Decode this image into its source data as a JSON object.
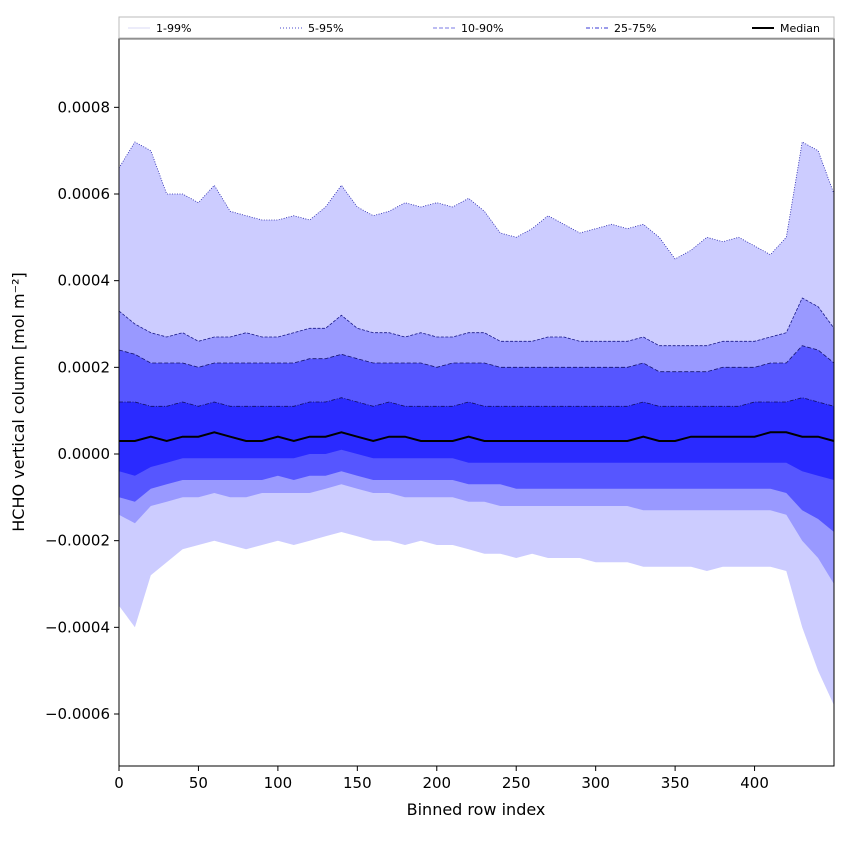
{
  "chart_data": {
    "type": "area",
    "title": "",
    "xlabel": "Binned row index",
    "ylabel": "HCHO vertical column [mol m⁻²]",
    "xlim": [
      0,
      450
    ],
    "ylim": [
      -0.00072,
      0.00096
    ],
    "x_ticks": [
      0,
      50,
      100,
      150,
      200,
      250,
      300,
      350,
      400
    ],
    "y_ticks": [
      -0.0006,
      -0.0004,
      -0.0002,
      0.0,
      0.0002,
      0.0004,
      0.0006,
      0.0008
    ],
    "y_tick_labels": [
      "−0.0006",
      "−0.0004",
      "−0.0002",
      "0.0000",
      "0.0002",
      "0.0004",
      "0.0006",
      "0.0008"
    ],
    "legend": {
      "placement": "top",
      "entries": [
        {
          "label": "1-99%",
          "color": "#d8d8f4",
          "style": "solid"
        },
        {
          "label": "5-95%",
          "color": "#4a4acd",
          "style": "dotted"
        },
        {
          "label": "10-90%",
          "color": "#7a7ae6",
          "style": "dashed"
        },
        {
          "label": "25-75%",
          "color": "#3a3ad6",
          "style": "dashdot"
        },
        {
          "label": "Median",
          "color": "#000000",
          "style": "solid"
        }
      ]
    },
    "x": [
      0,
      10,
      20,
      30,
      40,
      50,
      60,
      70,
      80,
      90,
      100,
      110,
      120,
      130,
      140,
      150,
      160,
      170,
      180,
      190,
      200,
      210,
      220,
      230,
      240,
      250,
      260,
      270,
      280,
      290,
      300,
      310,
      320,
      330,
      340,
      350,
      360,
      370,
      380,
      390,
      400,
      410,
      420,
      430,
      440,
      450
    ],
    "series": [
      {
        "name": "1-99%",
        "upper": [
          0.00066,
          0.00072,
          0.0007,
          0.0006,
          0.0006,
          0.00058,
          0.00062,
          0.00056,
          0.00055,
          0.00054,
          0.00054,
          0.00055,
          0.00054,
          0.00057,
          0.00062,
          0.00057,
          0.00055,
          0.00056,
          0.00058,
          0.00057,
          0.00058,
          0.00057,
          0.00059,
          0.00056,
          0.00051,
          0.0005,
          0.00052,
          0.00055,
          0.00053,
          0.00051,
          0.00052,
          0.00053,
          0.00052,
          0.00053,
          0.0005,
          0.00045,
          0.00047,
          0.0005,
          0.00049,
          0.0005,
          0.00048,
          0.00046,
          0.0005,
          0.00072,
          0.0007,
          0.0006
        ],
        "lower": [
          -0.00035,
          -0.0004,
          -0.00028,
          -0.00025,
          -0.00022,
          -0.00021,
          -0.0002,
          -0.00021,
          -0.00022,
          -0.00021,
          -0.0002,
          -0.00021,
          -0.0002,
          -0.00019,
          -0.00018,
          -0.00019,
          -0.0002,
          -0.0002,
          -0.00021,
          -0.0002,
          -0.00021,
          -0.00021,
          -0.00022,
          -0.00023,
          -0.00023,
          -0.00024,
          -0.00023,
          -0.00024,
          -0.00024,
          -0.00024,
          -0.00025,
          -0.00025,
          -0.00025,
          -0.00026,
          -0.00026,
          -0.00026,
          -0.00026,
          -0.00027,
          -0.00026,
          -0.00026,
          -0.00026,
          -0.00026,
          -0.00027,
          -0.0004,
          -0.0005,
          -0.00058
        ]
      },
      {
        "name": "5-95%",
        "upper": [
          0.00033,
          0.0003,
          0.00028,
          0.00027,
          0.00028,
          0.00026,
          0.00027,
          0.00027,
          0.00028,
          0.00027,
          0.00027,
          0.00028,
          0.00029,
          0.00029,
          0.00032,
          0.00029,
          0.00028,
          0.00028,
          0.00027,
          0.00028,
          0.00027,
          0.00027,
          0.00028,
          0.00028,
          0.00026,
          0.00026,
          0.00026,
          0.00027,
          0.00027,
          0.00026,
          0.00026,
          0.00026,
          0.00026,
          0.00027,
          0.00025,
          0.00025,
          0.00025,
          0.00025,
          0.00026,
          0.00026,
          0.00026,
          0.00027,
          0.00028,
          0.00036,
          0.00034,
          0.00029
        ],
        "lower": [
          -0.00014,
          -0.00016,
          -0.00012,
          -0.00011,
          -0.0001,
          -0.0001,
          -9e-05,
          -0.0001,
          -0.0001,
          -9e-05,
          -9e-05,
          -9e-05,
          -9e-05,
          -8e-05,
          -7e-05,
          -8e-05,
          -9e-05,
          -9e-05,
          -0.0001,
          -0.0001,
          -0.0001,
          -0.0001,
          -0.00011,
          -0.00011,
          -0.00012,
          -0.00012,
          -0.00012,
          -0.00012,
          -0.00012,
          -0.00012,
          -0.00012,
          -0.00012,
          -0.00012,
          -0.00013,
          -0.00013,
          -0.00013,
          -0.00013,
          -0.00013,
          -0.00013,
          -0.00013,
          -0.00013,
          -0.00013,
          -0.00014,
          -0.0002,
          -0.00024,
          -0.0003
        ]
      },
      {
        "name": "10-90%",
        "upper": [
          0.00024,
          0.00023,
          0.00021,
          0.00021,
          0.00021,
          0.0002,
          0.00021,
          0.00021,
          0.00021,
          0.00021,
          0.00021,
          0.00021,
          0.00022,
          0.00022,
          0.00023,
          0.00022,
          0.00021,
          0.00021,
          0.00021,
          0.00021,
          0.0002,
          0.00021,
          0.00021,
          0.00021,
          0.0002,
          0.0002,
          0.0002,
          0.0002,
          0.0002,
          0.0002,
          0.0002,
          0.0002,
          0.0002,
          0.00021,
          0.00019,
          0.00019,
          0.00019,
          0.00019,
          0.0002,
          0.0002,
          0.0002,
          0.00021,
          0.00021,
          0.00025,
          0.00024,
          0.00021
        ],
        "lower": [
          -0.0001,
          -0.00011,
          -8e-05,
          -7e-05,
          -6e-05,
          -6e-05,
          -6e-05,
          -6e-05,
          -6e-05,
          -6e-05,
          -5e-05,
          -6e-05,
          -5e-05,
          -5e-05,
          -4e-05,
          -5e-05,
          -6e-05,
          -6e-05,
          -6e-05,
          -6e-05,
          -6e-05,
          -6e-05,
          -7e-05,
          -7e-05,
          -7e-05,
          -8e-05,
          -8e-05,
          -8e-05,
          -8e-05,
          -8e-05,
          -8e-05,
          -8e-05,
          -8e-05,
          -8e-05,
          -8e-05,
          -8e-05,
          -8e-05,
          -8e-05,
          -8e-05,
          -8e-05,
          -8e-05,
          -8e-05,
          -9e-05,
          -0.00013,
          -0.00015,
          -0.00018
        ]
      },
      {
        "name": "25-75%",
        "upper": [
          0.00012,
          0.00012,
          0.00011,
          0.00011,
          0.00012,
          0.00011,
          0.00012,
          0.00011,
          0.00011,
          0.00011,
          0.00011,
          0.00011,
          0.00012,
          0.00012,
          0.00013,
          0.00012,
          0.00011,
          0.00012,
          0.00011,
          0.00011,
          0.00011,
          0.00011,
          0.00012,
          0.00011,
          0.00011,
          0.00011,
          0.00011,
          0.00011,
          0.00011,
          0.00011,
          0.00011,
          0.00011,
          0.00011,
          0.00012,
          0.00011,
          0.00011,
          0.00011,
          0.00011,
          0.00011,
          0.00011,
          0.00012,
          0.00012,
          0.00012,
          0.00013,
          0.00012,
          0.00011
        ],
        "lower": [
          -4e-05,
          -5e-05,
          -3e-05,
          -2e-05,
          -1e-05,
          -1e-05,
          -1e-05,
          -1e-05,
          -1e-05,
          -1e-05,
          -1e-05,
          -1e-05,
          0.0,
          0.0,
          1e-05,
          0.0,
          -1e-05,
          -1e-05,
          -1e-05,
          -1e-05,
          -1e-05,
          -1e-05,
          -2e-05,
          -2e-05,
          -2e-05,
          -2e-05,
          -2e-05,
          -2e-05,
          -2e-05,
          -2e-05,
          -2e-05,
          -2e-05,
          -2e-05,
          -2e-05,
          -2e-05,
          -2e-05,
          -2e-05,
          -2e-05,
          -2e-05,
          -2e-05,
          -2e-05,
          -2e-05,
          -2e-05,
          -4e-05,
          -5e-05,
          -6e-05
        ]
      },
      {
        "name": "Median",
        "values": [
          3e-05,
          3e-05,
          4e-05,
          3e-05,
          4e-05,
          4e-05,
          5e-05,
          4e-05,
          3e-05,
          3e-05,
          4e-05,
          3e-05,
          4e-05,
          4e-05,
          5e-05,
          4e-05,
          3e-05,
          4e-05,
          4e-05,
          3e-05,
          3e-05,
          3e-05,
          4e-05,
          3e-05,
          3e-05,
          3e-05,
          3e-05,
          3e-05,
          3e-05,
          3e-05,
          3e-05,
          3e-05,
          3e-05,
          4e-05,
          3e-05,
          3e-05,
          4e-05,
          4e-05,
          4e-05,
          4e-05,
          4e-05,
          5e-05,
          5e-05,
          4e-05,
          4e-05,
          3e-05
        ]
      }
    ]
  }
}
